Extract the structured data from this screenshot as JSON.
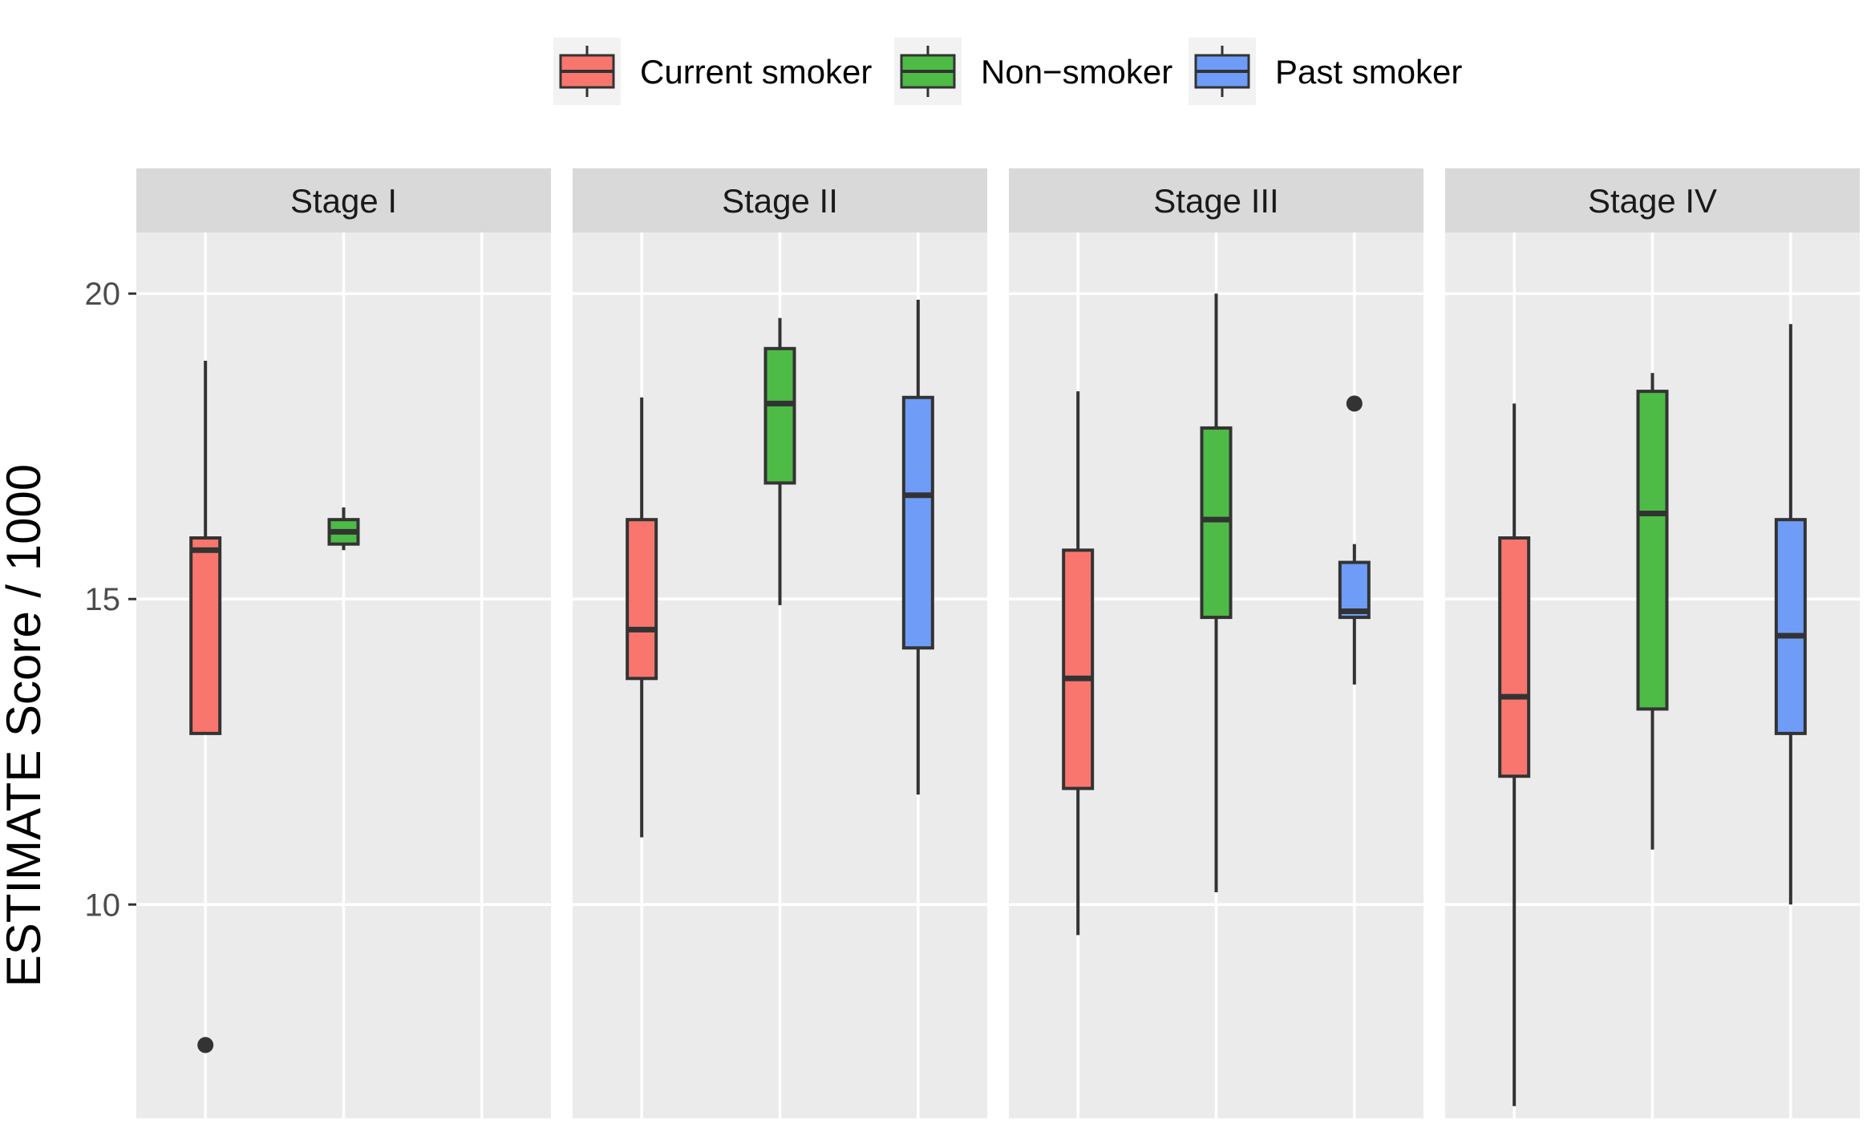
{
  "chart_data": {
    "type": "box",
    "ylabel": "ESTIMATE Score / 1000",
    "xlabel": "",
    "ylim": [
      6.5,
      21
    ],
    "yticks": [
      10,
      15,
      20
    ],
    "grid": true,
    "legend": {
      "position": "top",
      "entries": [
        {
          "name": "Current smoker",
          "color": "#F8766D"
        },
        {
          "name": "Non−smoker",
          "color": "#4DBB45"
        },
        {
          "name": "Past smoker",
          "color": "#6E9CF7"
        }
      ]
    },
    "categories": [
      "Current smoker",
      "Non−smoker",
      "Past smoker"
    ],
    "facets": [
      {
        "label": "Stage I",
        "boxes": [
          {
            "group": "Current smoker",
            "min": 12.8,
            "q1": 12.8,
            "median": 15.8,
            "q3": 16.0,
            "max": 18.9,
            "outliers": [
              7.7
            ]
          },
          {
            "group": "Non−smoker",
            "min": 15.8,
            "q1": 15.9,
            "median": 16.1,
            "q3": 16.3,
            "max": 16.5,
            "outliers": []
          }
        ]
      },
      {
        "label": "Stage II",
        "boxes": [
          {
            "group": "Current smoker",
            "min": 11.1,
            "q1": 13.7,
            "median": 14.5,
            "q3": 16.3,
            "max": 18.3,
            "outliers": []
          },
          {
            "group": "Non−smoker",
            "min": 14.9,
            "q1": 16.9,
            "median": 18.2,
            "q3": 19.1,
            "max": 19.6,
            "outliers": []
          },
          {
            "group": "Past smoker",
            "min": 11.8,
            "q1": 14.2,
            "median": 16.7,
            "q3": 18.3,
            "max": 19.9,
            "outliers": []
          }
        ]
      },
      {
        "label": "Stage III",
        "boxes": [
          {
            "group": "Current smoker",
            "min": 9.5,
            "q1": 11.9,
            "median": 13.7,
            "q3": 15.8,
            "max": 18.4,
            "outliers": []
          },
          {
            "group": "Non−smoker",
            "min": 10.2,
            "q1": 14.7,
            "median": 16.3,
            "q3": 17.8,
            "max": 20.0,
            "outliers": []
          },
          {
            "group": "Past smoker",
            "min": 13.6,
            "q1": 14.7,
            "median": 14.8,
            "q3": 15.6,
            "max": 15.9,
            "outliers": [
              18.2
            ]
          }
        ]
      },
      {
        "label": "Stage IV",
        "boxes": [
          {
            "group": "Current smoker",
            "min": 6.7,
            "q1": 12.1,
            "median": 13.4,
            "q3": 16.0,
            "max": 18.2,
            "outliers": []
          },
          {
            "group": "Non−smoker",
            "min": 10.9,
            "q1": 13.2,
            "median": 16.4,
            "q3": 18.4,
            "max": 18.7,
            "outliers": []
          },
          {
            "group": "Past smoker",
            "min": 10.0,
            "q1": 12.8,
            "median": 14.4,
            "q3": 16.3,
            "max": 19.5,
            "outliers": []
          }
        ]
      }
    ]
  }
}
